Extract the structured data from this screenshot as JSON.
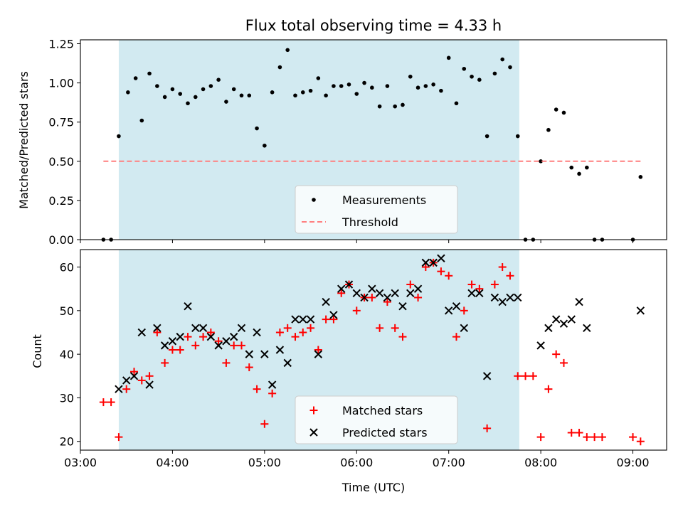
{
  "figure": {
    "title": "Flux total observing time = 4.33 h",
    "xlabel": "Time (UTC)"
  },
  "colors": {
    "shade": "#add8e6",
    "measurement": "#000000",
    "threshold": "#ff7f7f",
    "matched": "#ff0000",
    "predicted": "#000000"
  },
  "chart_data": [
    {
      "type": "scatter",
      "ylabel": "Matched/Predicted stars",
      "xlim": [
        "03:00",
        "09:22"
      ],
      "ylim": [
        0,
        1.275
      ],
      "x_ticks": [
        "03:00",
        "04:00",
        "05:00",
        "06:00",
        "07:00",
        "08:00",
        "09:00"
      ],
      "y_ticks": [
        "0.00",
        "0.25",
        "0.50",
        "0.75",
        "1.00",
        "1.25"
      ],
      "legend_position": "lower center",
      "shaded_region": {
        "x": [
          "03:25",
          "07:46"
        ]
      },
      "series": [
        {
          "name": "Measurements",
          "marker": "dot",
          "points": [
            [
              "03:15",
              0.0
            ],
            [
              "03:20",
              0.0
            ],
            [
              "03:25",
              0.66
            ],
            [
              "03:31",
              0.94
            ],
            [
              "03:36",
              1.03
            ],
            [
              "03:40",
              0.76
            ],
            [
              "03:45",
              1.06
            ],
            [
              "03:50",
              0.98
            ],
            [
              "03:55",
              0.91
            ],
            [
              "04:00",
              0.96
            ],
            [
              "04:05",
              0.93
            ],
            [
              "04:10",
              0.87
            ],
            [
              "04:15",
              0.91
            ],
            [
              "04:20",
              0.96
            ],
            [
              "04:25",
              0.98
            ],
            [
              "04:30",
              1.02
            ],
            [
              "04:35",
              0.88
            ],
            [
              "04:40",
              0.96
            ],
            [
              "04:45",
              0.92
            ],
            [
              "04:50",
              0.92
            ],
            [
              "04:55",
              0.71
            ],
            [
              "05:00",
              0.6
            ],
            [
              "05:05",
              0.94
            ],
            [
              "05:10",
              1.1
            ],
            [
              "05:15",
              1.21
            ],
            [
              "05:20",
              0.92
            ],
            [
              "05:25",
              0.94
            ],
            [
              "05:30",
              0.95
            ],
            [
              "05:35",
              1.03
            ],
            [
              "05:40",
              0.92
            ],
            [
              "05:45",
              0.98
            ],
            [
              "05:50",
              0.98
            ],
            [
              "05:55",
              0.99
            ],
            [
              "06:00",
              0.93
            ],
            [
              "06:05",
              1.0
            ],
            [
              "06:10",
              0.97
            ],
            [
              "06:15",
              0.85
            ],
            [
              "06:20",
              0.98
            ],
            [
              "06:25",
              0.85
            ],
            [
              "06:30",
              0.86
            ],
            [
              "06:35",
              1.04
            ],
            [
              "06:40",
              0.97
            ],
            [
              "06:45",
              0.98
            ],
            [
              "06:50",
              0.99
            ],
            [
              "06:55",
              0.95
            ],
            [
              "07:00",
              1.16
            ],
            [
              "07:05",
              0.87
            ],
            [
              "07:10",
              1.09
            ],
            [
              "07:15",
              1.04
            ],
            [
              "07:20",
              1.02
            ],
            [
              "07:25",
              0.66
            ],
            [
              "07:30",
              1.06
            ],
            [
              "07:35",
              1.15
            ],
            [
              "07:40",
              1.1
            ],
            [
              "07:45",
              0.66
            ],
            [
              "07:50",
              0.0
            ],
            [
              "07:55",
              0.0
            ],
            [
              "08:00",
              0.5
            ],
            [
              "08:05",
              0.7
            ],
            [
              "08:10",
              0.83
            ],
            [
              "08:15",
              0.81
            ],
            [
              "08:20",
              0.46
            ],
            [
              "08:25",
              0.42
            ],
            [
              "08:30",
              0.46
            ],
            [
              "08:35",
              0.0
            ],
            [
              "08:40",
              0.0
            ],
            [
              "09:00",
              0.0
            ],
            [
              "09:05",
              0.4
            ]
          ]
        },
        {
          "name": "Threshold",
          "marker": "dashed-line",
          "points": [
            [
              "03:15",
              0.5
            ],
            [
              "09:05",
              0.5
            ]
          ]
        }
      ]
    },
    {
      "type": "scatter",
      "ylabel": "Count",
      "xlim": [
        "03:00",
        "09:22"
      ],
      "ylim": [
        18,
        64
      ],
      "x_ticks": [
        "03:00",
        "04:00",
        "05:00",
        "06:00",
        "07:00",
        "08:00",
        "09:00"
      ],
      "y_ticks": [
        "20",
        "30",
        "40",
        "50",
        "60"
      ],
      "legend_position": "lower center",
      "shaded_region": {
        "x": [
          "03:25",
          "07:46"
        ]
      },
      "series": [
        {
          "name": "Matched stars",
          "marker": "plus",
          "points": [
            [
              "03:15",
              29
            ],
            [
              "03:20",
              29
            ],
            [
              "03:25",
              21
            ],
            [
              "03:30",
              32
            ],
            [
              "03:35",
              36
            ],
            [
              "03:40",
              34
            ],
            [
              "03:45",
              35
            ],
            [
              "03:50",
              45
            ],
            [
              "03:55",
              38
            ],
            [
              "04:00",
              41
            ],
            [
              "04:05",
              41
            ],
            [
              "04:10",
              44
            ],
            [
              "04:15",
              42
            ],
            [
              "04:20",
              44
            ],
            [
              "04:25",
              45
            ],
            [
              "04:30",
              43
            ],
            [
              "04:35",
              38
            ],
            [
              "04:40",
              42
            ],
            [
              "04:45",
              42
            ],
            [
              "04:50",
              37
            ],
            [
              "04:55",
              32
            ],
            [
              "05:00",
              24
            ],
            [
              "05:05",
              31
            ],
            [
              "05:10",
              45
            ],
            [
              "05:15",
              46
            ],
            [
              "05:20",
              44
            ],
            [
              "05:25",
              45
            ],
            [
              "05:30",
              46
            ],
            [
              "05:35",
              41
            ],
            [
              "05:40",
              48
            ],
            [
              "05:45",
              48
            ],
            [
              "05:50",
              54
            ],
            [
              "05:55",
              56
            ],
            [
              "06:00",
              50
            ],
            [
              "06:05",
              53
            ],
            [
              "06:10",
              53
            ],
            [
              "06:15",
              46
            ],
            [
              "06:20",
              52
            ],
            [
              "06:25",
              46
            ],
            [
              "06:30",
              44
            ],
            [
              "06:35",
              56
            ],
            [
              "06:40",
              53
            ],
            [
              "06:45",
              60
            ],
            [
              "06:50",
              61
            ],
            [
              "06:55",
              59
            ],
            [
              "07:00",
              58
            ],
            [
              "07:05",
              44
            ],
            [
              "07:10",
              50
            ],
            [
              "07:15",
              56
            ],
            [
              "07:20",
              55
            ],
            [
              "07:25",
              23
            ],
            [
              "07:30",
              56
            ],
            [
              "07:35",
              60
            ],
            [
              "07:40",
              58
            ],
            [
              "07:45",
              35
            ],
            [
              "07:50",
              35
            ],
            [
              "07:55",
              35
            ],
            [
              "08:00",
              21
            ],
            [
              "08:05",
              32
            ],
            [
              "08:10",
              40
            ],
            [
              "08:15",
              38
            ],
            [
              "08:20",
              22
            ],
            [
              "08:25",
              22
            ],
            [
              "08:30",
              21
            ],
            [
              "08:35",
              21
            ],
            [
              "08:40",
              21
            ],
            [
              "09:00",
              21
            ],
            [
              "09:05",
              20
            ]
          ]
        },
        {
          "name": "Predicted stars",
          "marker": "x",
          "points": [
            [
              "03:25",
              32
            ],
            [
              "03:30",
              34
            ],
            [
              "03:35",
              35
            ],
            [
              "03:40",
              45
            ],
            [
              "03:45",
              33
            ],
            [
              "03:50",
              46
            ],
            [
              "03:55",
              42
            ],
            [
              "04:00",
              43
            ],
            [
              "04:05",
              44
            ],
            [
              "04:10",
              51
            ],
            [
              "04:15",
              46
            ],
            [
              "04:20",
              46
            ],
            [
              "04:25",
              44
            ],
            [
              "04:30",
              42
            ],
            [
              "04:35",
              43
            ],
            [
              "04:40",
              44
            ],
            [
              "04:45",
              46
            ],
            [
              "04:50",
              40
            ],
            [
              "04:55",
              45
            ],
            [
              "05:00",
              40
            ],
            [
              "05:05",
              33
            ],
            [
              "05:10",
              41
            ],
            [
              "05:15",
              38
            ],
            [
              "05:20",
              48
            ],
            [
              "05:25",
              48
            ],
            [
              "05:30",
              48
            ],
            [
              "05:35",
              40
            ],
            [
              "05:40",
              52
            ],
            [
              "05:45",
              49
            ],
            [
              "05:50",
              55
            ],
            [
              "05:55",
              56
            ],
            [
              "06:00",
              54
            ],
            [
              "06:05",
              53
            ],
            [
              "06:10",
              55
            ],
            [
              "06:15",
              54
            ],
            [
              "06:20",
              53
            ],
            [
              "06:25",
              54
            ],
            [
              "06:30",
              51
            ],
            [
              "06:35",
              54
            ],
            [
              "06:40",
              55
            ],
            [
              "06:45",
              61
            ],
            [
              "06:50",
              61
            ],
            [
              "06:55",
              62
            ],
            [
              "07:00",
              50
            ],
            [
              "07:05",
              51
            ],
            [
              "07:10",
              46
            ],
            [
              "07:15",
              54
            ],
            [
              "07:20",
              54
            ],
            [
              "07:25",
              35
            ],
            [
              "07:30",
              53
            ],
            [
              "07:35",
              52
            ],
            [
              "07:40",
              53
            ],
            [
              "07:45",
              53
            ],
            [
              "08:00",
              42
            ],
            [
              "08:05",
              46
            ],
            [
              "08:10",
              48
            ],
            [
              "08:15",
              47
            ],
            [
              "08:20",
              48
            ],
            [
              "08:25",
              52
            ],
            [
              "08:30",
              46
            ],
            [
              "09:05",
              50
            ]
          ]
        }
      ]
    }
  ]
}
